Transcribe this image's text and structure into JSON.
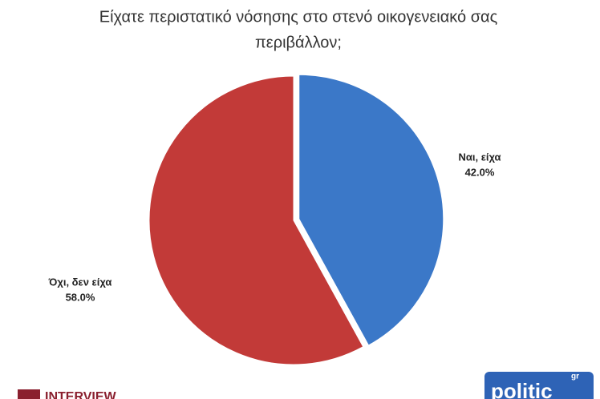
{
  "chart_data": {
    "type": "pie",
    "title": [
      "Είχατε περιστατικό νόσησης στο στενό οικογενειακό σας",
      "περιβάλλον;"
    ],
    "categories": [
      "Ναι, είχα",
      "Όχι, δεν είχα"
    ],
    "values": [
      42.0,
      58.0
    ],
    "value_labels": [
      "42.0%",
      "58.0%"
    ],
    "colors": [
      "#3b78c8",
      "#c23a38"
    ]
  },
  "logos": {
    "left": "INTERVIEW",
    "right": "politic",
    "right_suffix": "gr"
  }
}
